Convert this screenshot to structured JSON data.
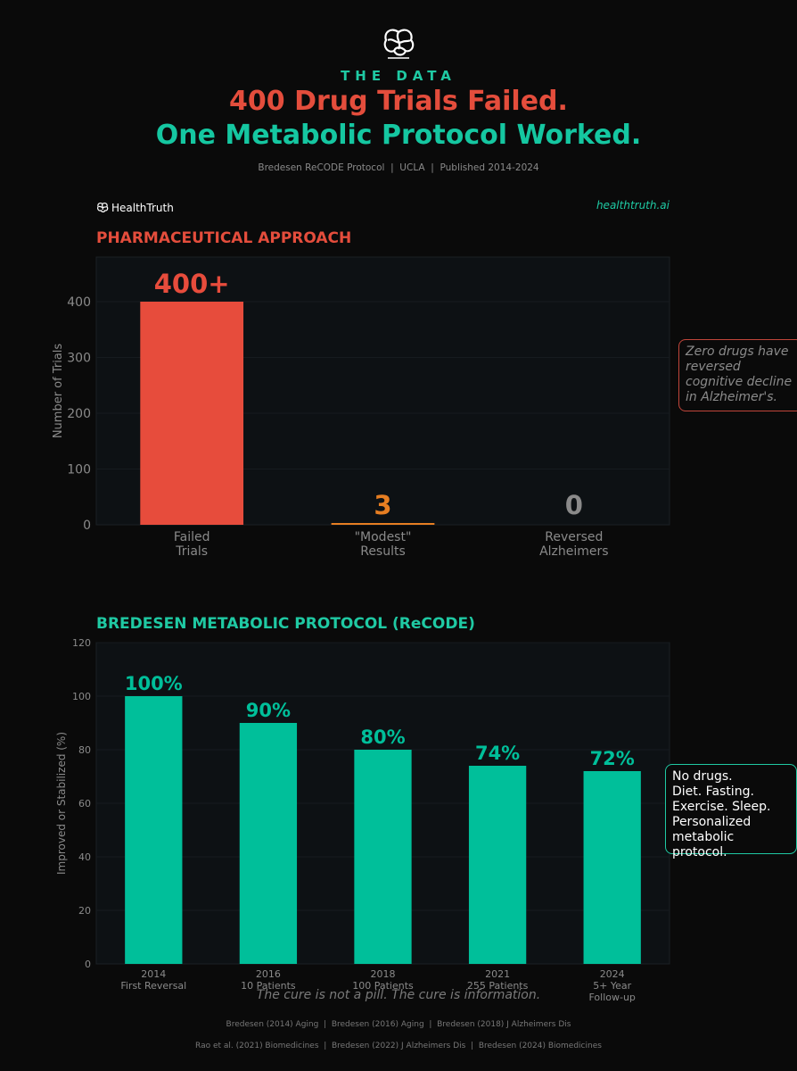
{
  "header": {
    "eyebrow": "THE DATA",
    "title_line1": "400 Drug Trials Failed.",
    "title_line2": "One Metabolic Protocol Worked.",
    "subtitle": "Bredesen ReCODE Protocol  |  UCLA  |  Published 2014-2024"
  },
  "brand": {
    "name": "HealthTruth",
    "site": "healthtruth.ai"
  },
  "colors": {
    "red": "#e74c3c",
    "orange": "#e67e22",
    "green": "#00bf9a",
    "gray": "#8a8a8a",
    "plot_bg": "#0d1114"
  },
  "chart_data": [
    {
      "type": "bar",
      "title": "PHARMACEUTICAL APPROACH",
      "ylabel": "Number of Trials",
      "ylim": [
        0,
        480
      ],
      "yticks": [
        0,
        100,
        200,
        300,
        400
      ],
      "categories": [
        "Failed\nTrials",
        "\"Modest\"\nResults",
        "Reversed\nAlzheimers"
      ],
      "values": [
        400,
        3,
        0
      ],
      "data_labels": [
        "400+",
        "3",
        "0"
      ],
      "label_colors": [
        "#e74c3c",
        "#e67e22",
        "#8a8a8a"
      ],
      "bar_colors": [
        "#e74c3c",
        "#e67e22",
        "#8a8a8a"
      ],
      "annotation": "Zero drugs have reversed cognitive decline in Alzheimer's."
    },
    {
      "type": "bar",
      "title": "BREDESEN METABOLIC PROTOCOL (ReCODE)",
      "ylabel": "Improved or Stabilized (%)",
      "ylim": [
        0,
        120
      ],
      "yticks": [
        0,
        20,
        40,
        60,
        80,
        100,
        120
      ],
      "categories": [
        "2014\nFirst Reversal",
        "2016\n10 Patients",
        "2018\n100 Patients",
        "2021\n255 Patients",
        "2024\n5+ Year\nFollow-up"
      ],
      "values": [
        100,
        90,
        80,
        74,
        72
      ],
      "data_labels": [
        "100%",
        "90%",
        "80%",
        "74%",
        "72%"
      ],
      "annotation": "No drugs.\nDiet. Fasting.\nExercise. Sleep.\nPersonalized\nmetabolic protocol."
    }
  ],
  "footer": {
    "tagline": "The cure is not a pill. The cure is information.",
    "refs_line1": "Bredesen (2014) Aging  |  Bredesen (2016) Aging  |  Bredesen (2018) J Alzheimers Dis",
    "refs_line2": "Rao et al. (2021) Biomedicines  |  Bredesen (2022) J Alzheimers Dis  |  Bredesen (2024) Biomedicines"
  }
}
